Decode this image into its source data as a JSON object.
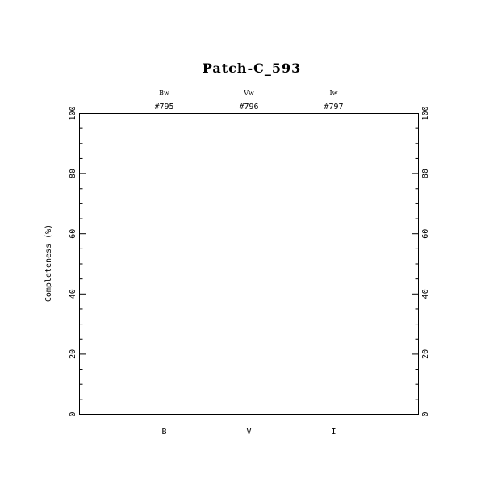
{
  "chart_data": {
    "type": "bar",
    "title": "Patch-C_593",
    "xlabel": "",
    "ylabel": "Completeness (%)",
    "ylim": [
      0,
      100
    ],
    "yticks": [
      "0",
      "20",
      "40",
      "60",
      "80",
      "100"
    ],
    "categories": [
      "B",
      "V",
      "I"
    ],
    "filters": [
      "Bw",
      "Vw",
      "Iw"
    ],
    "ids": [
      "#795",
      "#796",
      "#797"
    ],
    "values": [
      0,
      0,
      0
    ],
    "grid": false,
    "colors": {
      "axis": "#000000",
      "background": "#ffffff"
    }
  }
}
